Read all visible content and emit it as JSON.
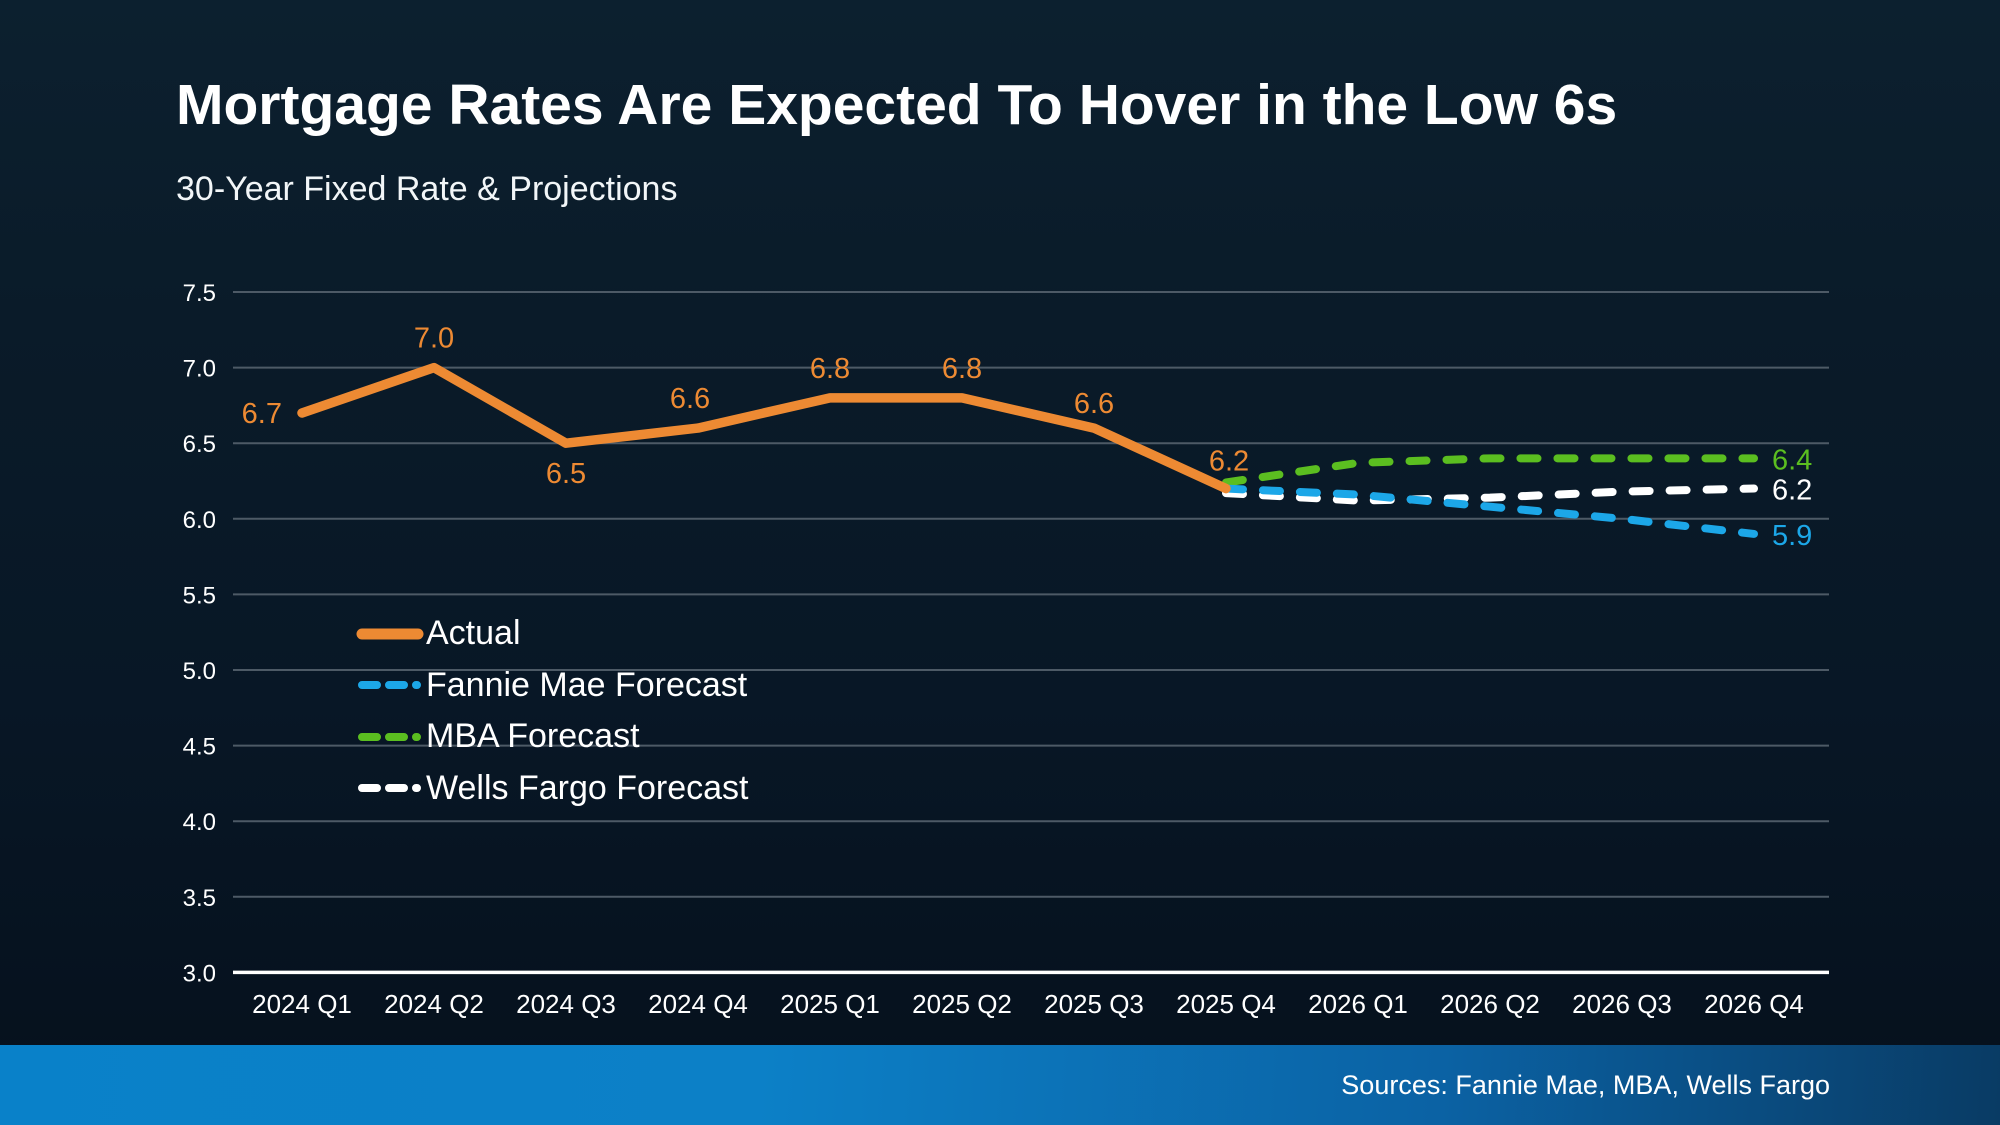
{
  "page": {
    "title": "Mortgage Rates Are Expected To Hover in the Low 6s",
    "subtitle": "30-Year Fixed Rate & Projections",
    "source_note": "Sources: Fannie Mae, MBA, Wells Fargo"
  },
  "colors": {
    "background_top": "#0c202f",
    "background_bottom": "#05101c",
    "accent_orange": "#ED8A33",
    "accent_blue": "#1CA7E8",
    "accent_green": "#5BBE20",
    "accent_white": "#FFFFFF",
    "gridline": "#4d5a66",
    "axis_line": "#FFFFFF",
    "footer_blue_left": "#0981c9",
    "footer_blue_right": "#093b64",
    "text": "#FFFFFF"
  },
  "chart_data": {
    "type": "line",
    "title": "30-Year Fixed Rate & Projections",
    "categories": [
      "2024 Q1",
      "2024 Q2",
      "2024 Q3",
      "2024 Q4",
      "2025 Q1",
      "2025 Q2",
      "2025 Q3",
      "2025 Q4",
      "2026 Q1",
      "2026 Q2",
      "2026 Q3",
      "2026 Q4"
    ],
    "ylim": [
      3.0,
      7.5
    ],
    "yticks": [
      7.5,
      7.0,
      6.5,
      6.0,
      5.5,
      5.0,
      4.5,
      4.0,
      3.5,
      3.0
    ],
    "grid": true,
    "legend_position": "inside-left",
    "series": [
      {
        "name": "Actual",
        "color": "#ED8A33",
        "style": "solid",
        "start_index": 0,
        "values": [
          6.7,
          7.0,
          6.5,
          6.6,
          6.8,
          6.8,
          6.6,
          6.2
        ],
        "point_labels": [
          {
            "index": 0,
            "text": "6.7",
            "pos": "left"
          },
          {
            "index": 1,
            "text": "7.0",
            "pos": "above"
          },
          {
            "index": 2,
            "text": "6.5",
            "pos": "below"
          },
          {
            "index": 3,
            "text": "6.6",
            "pos": "above",
            "dx": -8
          },
          {
            "index": 4,
            "text": "6.8",
            "pos": "above"
          },
          {
            "index": 5,
            "text": "6.8",
            "pos": "above"
          },
          {
            "index": 6,
            "text": "6.6",
            "pos": "above",
            "dy": 5
          },
          {
            "index": 7,
            "text": "6.2",
            "pos": "above",
            "dx": 3,
            "dy": 2
          }
        ]
      },
      {
        "name": "Fannie Mae Forecast",
        "color": "#1CA7E8",
        "style": "dashed",
        "start_index": 7,
        "values": [
          6.2,
          6.16,
          6.08,
          6.0,
          5.9
        ],
        "end_label": "5.9"
      },
      {
        "name": "MBA Forecast",
        "color": "#5BBE20",
        "style": "dashed",
        "start_index": 7,
        "values": [
          6.24,
          6.37,
          6.4,
          6.4,
          6.4
        ],
        "end_label": "6.4"
      },
      {
        "name": "Wells Fargo Forecast",
        "color": "#FFFFFF",
        "style": "dashed",
        "start_index": 7,
        "values": [
          6.17,
          6.12,
          6.14,
          6.18,
          6.2
        ],
        "end_label": "6.2"
      }
    ]
  }
}
